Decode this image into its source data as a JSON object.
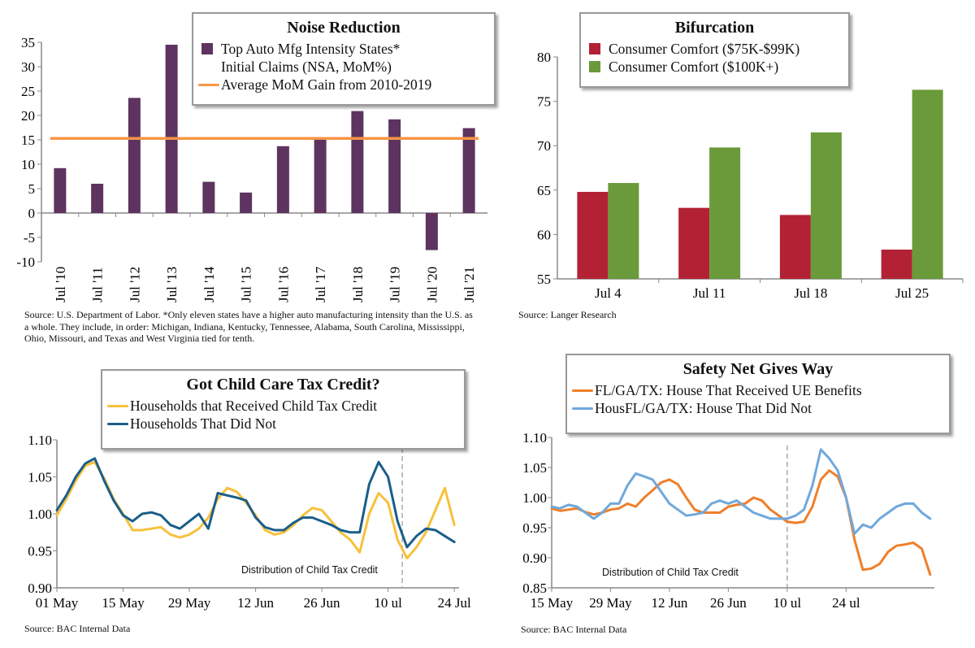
{
  "chart_data": [
    {
      "type": "bar",
      "title": "Noise Reduction",
      "categories": [
        "Jul '10",
        "Jul '11",
        "Jul '12",
        "Jul '13",
        "Jul '14",
        "Jul '15",
        "Jul '16",
        "Jul '17",
        "Jul '18",
        "Jul '19",
        "Jul '20",
        "Jul '21"
      ],
      "series": [
        {
          "name": "Top Auto Mfg Intensity States* Initial Claims (NSA, MoM%)",
          "values": [
            9.2,
            6.0,
            23.6,
            34.5,
            6.4,
            4.2,
            13.7,
            15.3,
            20.9,
            19.2,
            -7.6,
            17.4
          ],
          "color": "#5d3360"
        }
      ],
      "reference_line": {
        "name": "Average MoM Gain from 2010-2019",
        "value": 15.3,
        "color": "#f79646"
      },
      "legend_lines": [
        "Top Auto Mfg Intensity States*",
        "Initial Claims (NSA, MoM%)",
        "Average MoM Gain from 2010-2019"
      ],
      "ylim": [
        -10,
        35
      ],
      "yticks": [
        "35",
        "30",
        "25",
        "20",
        "15",
        "10",
        "5",
        "0",
        "-5",
        "-10"
      ],
      "source": "Source: U.S. Department of Labor. *Only eleven states have a higher auto manufacturing intensity than the U.S. as a whole. They include, in order: Michigan, Indiana, Kentucky, Tennessee, Alabama, South Carolina, Mississippi, Ohio, Missouri, and Texas and West Virginia tied for tenth."
    },
    {
      "type": "bar",
      "title": "Bifurcation",
      "categories": [
        "Jul 4",
        "Jul 11",
        "Jul 18",
        "Jul 25"
      ],
      "series": [
        {
          "name": "Consumer Comfort ($75K-$99K)",
          "values": [
            64.8,
            63.0,
            62.2,
            58.3
          ],
          "color": "#b22234"
        },
        {
          "name": "Consumer Comfort ($100K+)",
          "values": [
            65.8,
            69.8,
            71.5,
            76.3
          ],
          "color": "#6a9a3a"
        }
      ],
      "ylim": [
        55,
        80
      ],
      "yticks": [
        "80",
        "75",
        "70",
        "65",
        "60",
        "55"
      ],
      "source": "Source: Langer Research"
    },
    {
      "type": "line",
      "title": "Got Child Care Tax Credit?",
      "x_range": [
        "01 May",
        "24 Jul"
      ],
      "xticks": [
        "01 May",
        "15 May",
        "29 May",
        "12 Jun",
        "26 Jun",
        "10 ul",
        "24 Jul"
      ],
      "ylim": [
        0.9,
        1.1
      ],
      "yticks": [
        "1.10",
        "1.05",
        "1.00",
        "0.95",
        "0.90"
      ],
      "annotation": "Distribution of Child Tax Credit",
      "annotation_day": 73,
      "series": [
        {
          "name": "Households that Received Child Tax Credit",
          "color": "#f7c13b",
          "days": [
            0,
            2,
            4,
            6,
            8,
            10,
            12,
            14,
            16,
            18,
            20,
            22,
            24,
            26,
            28,
            30,
            32,
            34,
            36,
            38,
            40,
            42,
            44,
            46,
            48,
            50,
            52,
            54,
            56,
            58,
            60,
            62,
            64,
            66,
            68,
            70,
            72,
            74,
            76,
            78,
            80,
            82,
            84
          ],
          "values": [
            0.998,
            1.02,
            1.045,
            1.065,
            1.07,
            1.048,
            1.02,
            1.0,
            0.978,
            0.978,
            0.98,
            0.982,
            0.972,
            0.968,
            0.972,
            0.98,
            0.995,
            1.02,
            1.035,
            1.03,
            1.015,
            0.998,
            0.978,
            0.972,
            0.975,
            0.985,
            0.998,
            1.008,
            1.005,
            0.99,
            0.975,
            0.965,
            0.948,
            1.0,
            1.028,
            1.015,
            0.965,
            0.94,
            0.955,
            0.975,
            1.005,
            1.035,
            0.985
          ]
        },
        {
          "name": "Households That Did Not",
          "color": "#1a5e8a",
          "days": [
            0,
            2,
            4,
            6,
            8,
            10,
            12,
            14,
            16,
            18,
            20,
            22,
            24,
            26,
            28,
            30,
            32,
            34,
            36,
            38,
            40,
            42,
            44,
            46,
            48,
            50,
            52,
            54,
            56,
            58,
            60,
            62,
            64,
            66,
            68,
            70,
            72,
            74,
            76,
            78,
            80,
            82,
            84
          ],
          "values": [
            1.005,
            1.025,
            1.05,
            1.068,
            1.075,
            1.045,
            1.018,
            0.998,
            0.99,
            1.0,
            1.002,
            0.998,
            0.985,
            0.98,
            0.99,
            1.0,
            0.98,
            1.028,
            1.025,
            1.022,
            1.018,
            0.995,
            0.982,
            0.978,
            0.978,
            0.988,
            0.995,
            0.995,
            0.99,
            0.985,
            0.978,
            0.975,
            0.975,
            1.04,
            1.07,
            1.05,
            0.99,
            0.955,
            0.97,
            0.98,
            0.978,
            0.97,
            0.962
          ]
        }
      ],
      "source": "Source: BAC Internal Data"
    },
    {
      "type": "line",
      "title": "Safety Net Gives Way",
      "x_range": [
        "15 May",
        "24 Jul"
      ],
      "xticks": [
        "15 May",
        "29 May",
        "12 Jun",
        "26 Jun",
        "10 ul",
        "24 ul"
      ],
      "ylim": [
        0.85,
        1.1
      ],
      "yticks": [
        "1.10",
        "1.05",
        "1.00",
        "0.95",
        "0.90",
        "0.85"
      ],
      "annotation": "Distribution of Child Tax Credit",
      "annotation_day": 56,
      "series": [
        {
          "name": "FL/GA/TX:  House That Received UE Benefits",
          "color": "#ef7f2a",
          "days": [
            0,
            2,
            4,
            6,
            8,
            10,
            12,
            14,
            16,
            18,
            20,
            22,
            24,
            26,
            28,
            30,
            32,
            34,
            36,
            38,
            40,
            42,
            44,
            46,
            48,
            50,
            52,
            54,
            56,
            58,
            60,
            62,
            64,
            66,
            68,
            70,
            72,
            74,
            76,
            78,
            80,
            82,
            84,
            86,
            88,
            90
          ],
          "values": [
            0.982,
            0.978,
            0.98,
            0.982,
            0.976,
            0.972,
            0.975,
            0.98,
            0.982,
            0.99,
            0.985,
            1.0,
            1.012,
            1.025,
            1.03,
            1.022,
            1.0,
            0.98,
            0.975,
            0.975,
            0.975,
            0.985,
            0.988,
            0.99,
            1.0,
            0.995,
            0.98,
            0.97,
            0.96,
            0.958,
            0.96,
            0.985,
            1.03,
            1.045,
            1.035,
            1.0,
            0.93,
            0.88,
            0.882,
            0.89,
            0.91,
            0.92,
            0.922,
            0.925,
            0.915,
            0.872
          ]
        },
        {
          "name": "HousFL/GA/TX:  House That Did Not",
          "color": "#6fa8dc",
          "days": [
            0,
            2,
            4,
            6,
            8,
            10,
            12,
            14,
            16,
            18,
            20,
            22,
            24,
            26,
            28,
            30,
            32,
            34,
            36,
            38,
            40,
            42,
            44,
            46,
            48,
            50,
            52,
            54,
            56,
            58,
            60,
            62,
            64,
            66,
            68,
            70,
            72,
            74,
            76,
            78,
            80,
            82,
            84,
            86,
            88,
            90
          ],
          "values": [
            0.985,
            0.982,
            0.988,
            0.985,
            0.975,
            0.965,
            0.975,
            0.99,
            0.99,
            1.02,
            1.04,
            1.035,
            1.03,
            1.01,
            0.99,
            0.98,
            0.97,
            0.972,
            0.975,
            0.99,
            0.995,
            0.99,
            0.995,
            0.985,
            0.975,
            0.97,
            0.965,
            0.965,
            0.965,
            0.97,
            0.98,
            1.02,
            1.08,
            1.065,
            1.045,
            1.0,
            0.94,
            0.955,
            0.95,
            0.965,
            0.975,
            0.985,
            0.99,
            0.99,
            0.975,
            0.965
          ]
        }
      ],
      "source": "Source: BAC Internal Data"
    }
  ]
}
